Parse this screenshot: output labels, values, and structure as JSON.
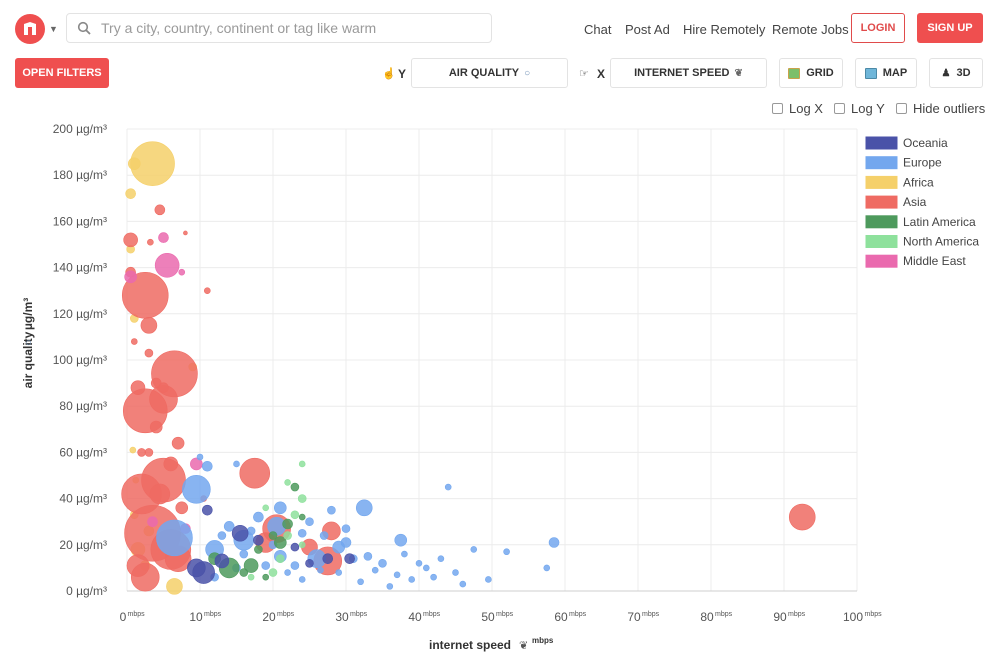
{
  "header": {
    "search_placeholder": "Try a city, country, continent or tag like warm",
    "nav": [
      "Chat",
      "Post Ad",
      "Hire Remotely",
      "Remote Jobs"
    ],
    "login_label": "LOGIN",
    "signup_label": "SIGN UP"
  },
  "toolbar": {
    "filters_label": "OPEN FILTERS",
    "y_label": "Y",
    "y_value": "AIR QUALITY",
    "x_label": "X",
    "x_value": "INTERNET SPEED",
    "grid_label": "GRID",
    "map_label": "MAP",
    "three_d_label": "3D",
    "log_x_label": "Log X",
    "log_y_label": "Log Y",
    "hide_outliers_label": "Hide outliers"
  },
  "colors": {
    "brand": "#ef4f4f",
    "Oceania": "#4a52a8",
    "Europe": "#73a7ee",
    "Africa": "#f5d06a",
    "Asia": "#ef6b63",
    "Latin America": "#4e9a5d",
    "North America": "#8ee19c",
    "Middle East": "#ea6aae"
  },
  "chart_data": {
    "type": "scatter",
    "xlabel": "internet speed",
    "xunit": "mbps",
    "ylabel": "air quality",
    "yunit": "µg/m³",
    "xlim": [
      0,
      100
    ],
    "ylim": [
      0,
      200
    ],
    "x_ticks": [
      "0",
      "10",
      "20",
      "30",
      "40",
      "50",
      "60",
      "70",
      "80",
      "90",
      "100"
    ],
    "y_ticks": [
      "0 µg/m³",
      "20 µg/m³",
      "40 µg/m³",
      "60 µg/m³",
      "80 µg/m³",
      "100 µg/m³",
      "120 µg/m³",
      "140 µg/m³",
      "160 µg/m³",
      "180 µg/m³",
      "200 µg/m³"
    ],
    "grid": true,
    "legend_position": "top-right",
    "legend": [
      "Oceania",
      "Europe",
      "Africa",
      "Asia",
      "Latin America",
      "North America",
      "Middle East"
    ],
    "series": [
      {
        "name": "Africa",
        "points": [
          [
            3.5,
            185,
            22
          ],
          [
            1,
            185,
            6
          ],
          [
            0.5,
            172,
            5
          ],
          [
            0.5,
            148,
            4
          ],
          [
            1,
            118,
            4
          ],
          [
            9,
            97,
            4
          ],
          [
            0.8,
            61,
            3
          ],
          [
            1,
            33,
            4
          ],
          [
            1.5,
            18,
            7
          ],
          [
            3,
            26,
            5
          ],
          [
            6.5,
            2,
            8
          ],
          [
            1.2,
            48,
            3
          ],
          [
            2.5,
            11,
            5
          ]
        ]
      },
      {
        "name": "Asia",
        "points": [
          [
            92.5,
            32,
            13
          ],
          [
            17.5,
            51,
            15
          ],
          [
            2.5,
            128,
            23
          ],
          [
            6.5,
            94,
            23
          ],
          [
            2.5,
            78,
            22
          ],
          [
            5,
            83,
            14
          ],
          [
            3,
            115,
            8
          ],
          [
            0.5,
            152,
            7
          ],
          [
            4.5,
            165,
            5
          ],
          [
            0.5,
            138,
            5
          ],
          [
            6,
            55,
            7
          ],
          [
            7,
            64,
            6
          ],
          [
            1,
            108,
            3
          ],
          [
            3,
            103,
            4
          ],
          [
            4,
            90,
            5
          ],
          [
            2,
            42,
            20
          ],
          [
            5,
            48,
            22
          ],
          [
            3.5,
            25,
            28
          ],
          [
            6,
            18,
            20
          ],
          [
            1.5,
            11,
            11
          ],
          [
            2.5,
            6,
            14
          ],
          [
            7,
            14,
            13
          ],
          [
            20.5,
            27,
            14
          ],
          [
            27.5,
            13,
            14
          ],
          [
            19,
            21,
            10
          ],
          [
            28,
            26,
            9
          ],
          [
            25,
            19,
            8
          ],
          [
            4,
            71,
            6
          ],
          [
            2,
            60,
            4
          ],
          [
            5,
            88,
            5
          ],
          [
            3.2,
            151,
            3
          ],
          [
            8,
            155,
            2
          ],
          [
            11,
            130,
            3
          ],
          [
            1.5,
            88,
            7
          ],
          [
            10.5,
            40,
            3
          ],
          [
            7.5,
            36,
            6
          ],
          [
            4.5,
            42,
            10
          ],
          [
            3,
            60,
            4
          ]
        ]
      },
      {
        "name": "Middle East",
        "points": [
          [
            5.5,
            141,
            12
          ],
          [
            5,
            153,
            5
          ],
          [
            7.5,
            138,
            3
          ],
          [
            0.5,
            136,
            6
          ],
          [
            3.5,
            30,
            5
          ],
          [
            8,
            27,
            5
          ],
          [
            9.5,
            55,
            6
          ]
        ]
      },
      {
        "name": "Europe",
        "points": [
          [
            9.5,
            44,
            14
          ],
          [
            6.5,
            23,
            18
          ],
          [
            16,
            22,
            10
          ],
          [
            20.5,
            28,
            9
          ],
          [
            26,
            14,
            9
          ],
          [
            32.5,
            36,
            8
          ],
          [
            37.5,
            22,
            6
          ],
          [
            21,
            15,
            6
          ],
          [
            12,
            18,
            9
          ],
          [
            29,
            19,
            6
          ],
          [
            58.5,
            21,
            5
          ],
          [
            44,
            45,
            3
          ],
          [
            47.5,
            18,
            3
          ],
          [
            11,
            54,
            5
          ],
          [
            10,
            58,
            3
          ],
          [
            15,
            55,
            3
          ],
          [
            57.5,
            10,
            3
          ],
          [
            49.5,
            5,
            3
          ],
          [
            52,
            17,
            3
          ],
          [
            33,
            15,
            4
          ],
          [
            35,
            12,
            4
          ],
          [
            41,
            10,
            3
          ],
          [
            42,
            6,
            3
          ],
          [
            30,
            21,
            5
          ],
          [
            23,
            11,
            4
          ],
          [
            26.5,
            9,
            3
          ],
          [
            31,
            14,
            4
          ],
          [
            34,
            9,
            3
          ],
          [
            37,
            7,
            3
          ],
          [
            39,
            5,
            3
          ],
          [
            14,
            28,
            5
          ],
          [
            18,
            32,
            5
          ],
          [
            21,
            36,
            6
          ],
          [
            13,
            24,
            4
          ],
          [
            16,
            16,
            4
          ],
          [
            19,
            11,
            4
          ],
          [
            22,
            8,
            3
          ],
          [
            24,
            5,
            3
          ],
          [
            12,
            6,
            4
          ],
          [
            15,
            10,
            4
          ],
          [
            17,
            26,
            4
          ],
          [
            25,
            30,
            4
          ],
          [
            27,
            24,
            4
          ],
          [
            29,
            8,
            3
          ],
          [
            32,
            4,
            3
          ],
          [
            36,
            2,
            3
          ],
          [
            38,
            16,
            3
          ],
          [
            40,
            12,
            3
          ],
          [
            45,
            8,
            3
          ],
          [
            46,
            3,
            3
          ],
          [
            43,
            14,
            3
          ],
          [
            28,
            35,
            4
          ],
          [
            30,
            27,
            4
          ],
          [
            24,
            25,
            4
          ],
          [
            20,
            20,
            4
          ]
        ]
      },
      {
        "name": "Latin America",
        "points": [
          [
            14,
            10,
            10
          ],
          [
            17,
            11,
            7
          ],
          [
            21,
            21,
            6
          ],
          [
            23,
            45,
            4
          ],
          [
            12,
            14,
            6
          ],
          [
            22,
            29,
            5
          ],
          [
            20,
            24,
            4
          ],
          [
            18,
            18,
            4
          ],
          [
            24,
            32,
            3
          ],
          [
            16,
            8,
            4
          ],
          [
            19,
            6,
            3
          ]
        ]
      },
      {
        "name": "North America",
        "points": [
          [
            24,
            40,
            4
          ],
          [
            24,
            55,
            3
          ],
          [
            23,
            33,
            4
          ],
          [
            22,
            24,
            4
          ],
          [
            22,
            47,
            3
          ],
          [
            21,
            14,
            4
          ],
          [
            20,
            8,
            4
          ],
          [
            17,
            6,
            3
          ],
          [
            24,
            20,
            3
          ],
          [
            19,
            36,
            3
          ]
        ]
      },
      {
        "name": "Oceania",
        "points": [
          [
            10.5,
            8,
            11
          ],
          [
            13,
            13,
            7
          ],
          [
            15.5,
            25,
            8
          ],
          [
            9.5,
            10,
            9
          ],
          [
            11,
            35,
            5
          ],
          [
            18,
            22,
            5
          ],
          [
            27.5,
            14,
            5
          ],
          [
            30.5,
            14,
            5
          ],
          [
            23,
            19,
            4
          ],
          [
            25,
            12,
            4
          ]
        ]
      }
    ]
  }
}
